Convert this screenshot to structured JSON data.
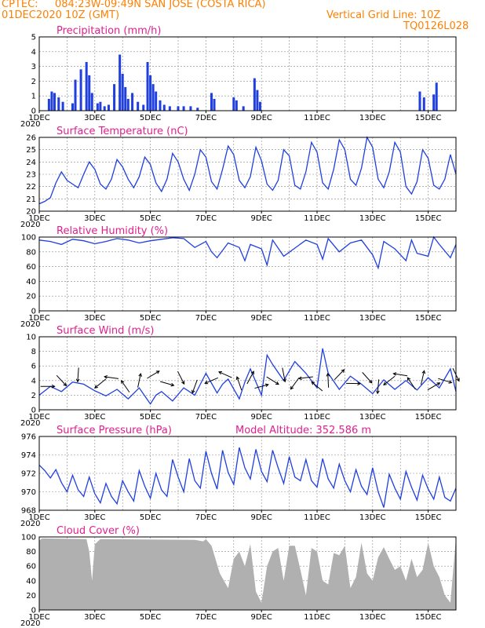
{
  "header": {
    "source": "CPTEC:",
    "location": "084:23W-09:49N  SAN JOSE (COSTA RICA)",
    "init": "01DEC2020 10Z (GMT)",
    "grid_note": "Vertical Grid Line: 10Z",
    "code": "TQ0126L028"
  },
  "x_tick_labels": [
    "1DEC",
    "3DEC",
    "5DEC",
    "7DEC",
    "9DEC",
    "11DEC",
    "13DEC",
    "15DEC"
  ],
  "year_label": "2020",
  "colors": {
    "header": "#ff8000",
    "title": "#e0208f",
    "line": "#1f3fe0",
    "bar": "#1f3fe0",
    "cloud": "#b0b0b0"
  },
  "chart_data": [
    {
      "type": "bar",
      "id": "precip",
      "title": "Precipitation (mm/h)",
      "ylim": [
        0,
        5
      ],
      "yticks": [
        0,
        1,
        2,
        3,
        4,
        5
      ],
      "x_unit": "days since 01DEC2020 10Z",
      "x_range": [
        0,
        15
      ],
      "series": [
        {
          "x": [
            0.35,
            0.45,
            0.55,
            0.7,
            0.85,
            1.2,
            1.3,
            1.5,
            1.7,
            1.8,
            1.9,
            2.1,
            2.2,
            2.35,
            2.5,
            2.7,
            2.9,
            3.0,
            3.1,
            3.2,
            3.35,
            3.55,
            3.75,
            3.9,
            4.0,
            4.1,
            4.2,
            4.35,
            4.5,
            4.7,
            5.0,
            5.2,
            5.45,
            5.7,
            6.2,
            6.3,
            7.0,
            7.1,
            7.35,
            7.75,
            7.85,
            7.95,
            13.7,
            13.85,
            14.2,
            14.3
          ],
          "values": [
            0.8,
            1.3,
            1.2,
            0.9,
            0.6,
            0.5,
            2.1,
            2.8,
            3.3,
            2.4,
            1.2,
            0.5,
            0.6,
            0.3,
            0.4,
            1.8,
            3.8,
            2.5,
            1.6,
            0.8,
            1.2,
            0.6,
            0.4,
            3.3,
            2.4,
            1.8,
            1.3,
            0.7,
            0.4,
            0.3,
            0.3,
            0.3,
            0.3,
            0.2,
            1.2,
            0.8,
            0.9,
            0.7,
            0.3,
            2.2,
            1.4,
            0.6,
            1.3,
            0.9,
            1.1,
            1.9
          ]
        }
      ]
    },
    {
      "type": "line",
      "id": "temp",
      "title": "Surface Temperature (nC)",
      "ylim": [
        20,
        26
      ],
      "yticks": [
        20,
        21,
        22,
        23,
        24,
        25,
        26
      ],
      "series": [
        {
          "x": [
            0,
            0.2,
            0.4,
            0.6,
            0.8,
            1.0,
            1.2,
            1.4,
            1.6,
            1.8,
            2.0,
            2.2,
            2.4,
            2.6,
            2.8,
            3.0,
            3.2,
            3.4,
            3.6,
            3.8,
            4.0,
            4.2,
            4.4,
            4.6,
            4.8,
            5.0,
            5.2,
            5.4,
            5.6,
            5.8,
            6.0,
            6.2,
            6.4,
            6.6,
            6.8,
            7.0,
            7.2,
            7.4,
            7.6,
            7.8,
            8.0,
            8.2,
            8.4,
            8.6,
            8.8,
            9.0,
            9.2,
            9.4,
            9.6,
            9.8,
            10.0,
            10.2,
            10.4,
            10.6,
            10.8,
            11.0,
            11.2,
            11.4,
            11.6,
            11.8,
            12.0,
            12.2,
            12.4,
            12.6,
            12.8,
            13.0,
            13.2,
            13.4,
            13.6,
            13.8,
            14.0,
            14.2,
            14.4,
            14.6,
            14.8,
            15.0
          ],
          "values": [
            20.6,
            20.8,
            21.1,
            22.3,
            23.2,
            22.5,
            22.2,
            21.9,
            23.0,
            24.0,
            23.4,
            22.2,
            21.8,
            22.6,
            24.2,
            23.6,
            22.6,
            21.9,
            22.8,
            24.4,
            23.8,
            22.3,
            21.6,
            22.6,
            24.7,
            24.0,
            22.6,
            21.7,
            23.0,
            25.0,
            24.4,
            22.4,
            21.8,
            23.4,
            25.3,
            24.6,
            22.5,
            21.9,
            22.8,
            25.2,
            24.1,
            22.2,
            21.7,
            22.5,
            25.0,
            24.5,
            22.1,
            21.8,
            23.2,
            25.6,
            24.8,
            22.3,
            21.8,
            23.4,
            25.8,
            25.0,
            22.6,
            22.1,
            23.5,
            26.0,
            25.2,
            22.6,
            21.9,
            23.2,
            25.6,
            24.8,
            22.0,
            21.4,
            22.4,
            25.0,
            24.3,
            22.1,
            21.8,
            22.6,
            24.6,
            23.0
          ]
        }
      ]
    },
    {
      "type": "line",
      "id": "rh",
      "title": "Relative Humidity (%)",
      "ylim": [
        0,
        100
      ],
      "yticks": [
        0,
        20,
        40,
        60,
        80,
        100
      ],
      "series": [
        {
          "x": [
            0,
            0.4,
            0.8,
            1.2,
            1.6,
            2.0,
            2.4,
            2.8,
            3.2,
            3.6,
            4.0,
            4.4,
            4.8,
            5.2,
            5.6,
            6.0,
            6.2,
            6.4,
            6.8,
            7.2,
            7.4,
            7.6,
            8.0,
            8.2,
            8.4,
            8.8,
            9.2,
            9.6,
            10.0,
            10.2,
            10.4,
            10.8,
            11.2,
            11.6,
            12.0,
            12.2,
            12.4,
            12.8,
            13.2,
            13.4,
            13.6,
            14.0,
            14.2,
            14.4,
            14.8,
            15.0
          ],
          "values": [
            96,
            94,
            90,
            97,
            95,
            91,
            94,
            98,
            96,
            92,
            95,
            97,
            99,
            98,
            86,
            94,
            80,
            72,
            92,
            86,
            68,
            90,
            84,
            62,
            96,
            74,
            85,
            96,
            90,
            70,
            98,
            80,
            92,
            96,
            76,
            58,
            94,
            84,
            68,
            96,
            78,
            74,
            100,
            90,
            72,
            90
          ]
        }
      ]
    },
    {
      "type": "line",
      "id": "wind",
      "title": "Surface Wind (m/s)",
      "ylim": [
        0,
        10
      ],
      "yticks": [
        0,
        2,
        4,
        6,
        8,
        10
      ],
      "series": [
        {
          "x": [
            0,
            0.4,
            0.8,
            1.2,
            1.6,
            2.0,
            2.4,
            2.8,
            3.2,
            3.6,
            4.0,
            4.2,
            4.4,
            4.8,
            5.2,
            5.6,
            6.0,
            6.4,
            6.6,
            6.8,
            7.2,
            7.4,
            7.6,
            8.0,
            8.2,
            8.4,
            8.8,
            9.2,
            9.6,
            10.0,
            10.2,
            10.4,
            10.8,
            11.2,
            11.6,
            12.0,
            12.4,
            12.8,
            13.2,
            13.6,
            14.0,
            14.4,
            14.8,
            15.0
          ],
          "values": [
            2.0,
            3.2,
            2.5,
            3.8,
            3.5,
            2.6,
            1.9,
            2.8,
            1.5,
            3.0,
            0.8,
            2.0,
            2.5,
            1.2,
            3.0,
            2.0,
            5.0,
            2.3,
            3.5,
            4.2,
            1.5,
            3.8,
            5.6,
            2.0,
            7.5,
            6.2,
            4.0,
            6.6,
            5.0,
            3.0,
            8.4,
            5.0,
            2.8,
            4.6,
            3.5,
            2.2,
            4.1,
            2.8,
            4.0,
            2.7,
            4.4,
            3.0,
            5.6,
            2.5
          ]
        }
      ],
      "arrow_x": [
        0.3,
        0.8,
        1.4,
        2.2,
        2.6,
        3.1,
        3.6,
        4.1,
        4.6,
        5.1,
        5.6,
        6.2,
        6.7,
        7.2,
        7.6,
        8.0,
        8.4,
        8.8,
        9.2,
        9.6,
        10.0,
        10.4,
        10.8,
        11.3,
        11.8,
        12.2,
        12.6,
        13.0,
        13.4,
        13.8,
        14.2,
        14.6,
        15.0
      ]
    },
    {
      "type": "line",
      "id": "pres",
      "title": "Surface Pressure (hPa)",
      "annotation": "Model Altitude: 352.586 m",
      "ylim": [
        968,
        976
      ],
      "yticks": [
        968,
        970,
        972,
        974,
        976
      ],
      "series": [
        {
          "x": [
            0,
            0.2,
            0.4,
            0.6,
            0.8,
            1.0,
            1.2,
            1.4,
            1.6,
            1.8,
            2.0,
            2.2,
            2.4,
            2.6,
            2.8,
            3.0,
            3.2,
            3.4,
            3.6,
            3.8,
            4.0,
            4.2,
            4.4,
            4.6,
            4.8,
            5.0,
            5.2,
            5.4,
            5.6,
            5.8,
            6.0,
            6.2,
            6.4,
            6.6,
            6.8,
            7.0,
            7.2,
            7.4,
            7.6,
            7.8,
            8.0,
            8.2,
            8.4,
            8.6,
            8.8,
            9.0,
            9.2,
            9.4,
            9.6,
            9.8,
            10.0,
            10.2,
            10.4,
            10.6,
            10.8,
            11.0,
            11.2,
            11.4,
            11.6,
            11.8,
            12.0,
            12.2,
            12.4,
            12.6,
            12.8,
            13.0,
            13.2,
            13.4,
            13.6,
            13.8,
            14.0,
            14.2,
            14.4,
            14.6,
            14.8,
            15.0
          ],
          "values": [
            972.9,
            972.3,
            971.5,
            972.4,
            971.0,
            970.0,
            971.8,
            970.2,
            969.5,
            971.6,
            969.8,
            968.8,
            970.9,
            969.5,
            968.7,
            971.2,
            970.0,
            969.0,
            972.3,
            970.6,
            969.3,
            972.0,
            970.2,
            969.5,
            973.5,
            971.6,
            970.0,
            973.6,
            971.2,
            970.4,
            974.4,
            972.0,
            970.3,
            974.5,
            972.1,
            970.8,
            974.8,
            972.6,
            971.4,
            974.6,
            972.2,
            971.1,
            974.5,
            972.6,
            970.9,
            973.8,
            971.6,
            971.2,
            973.5,
            971.2,
            970.5,
            973.6,
            971.4,
            970.4,
            973.0,
            971.2,
            970.0,
            972.4,
            970.6,
            969.7,
            972.6,
            970.0,
            968.3,
            971.9,
            970.4,
            969.2,
            972.2,
            970.5,
            969.1,
            971.8,
            970.3,
            969.2,
            971.6,
            969.4,
            969.0,
            970.4
          ]
        }
      ]
    },
    {
      "type": "area",
      "id": "cloud",
      "title": "Cloud Cover (%)",
      "ylim": [
        0,
        100
      ],
      "yticks": [
        0,
        20,
        40,
        60,
        80,
        100
      ],
      "series": [
        {
          "x": [
            0,
            0.1,
            1.7,
            1.8,
            1.9,
            2.0,
            2.2,
            5.6,
            5.9,
            6.0,
            6.2,
            6.5,
            6.8,
            7.0,
            7.2,
            7.4,
            7.6,
            7.8,
            8.0,
            8.2,
            8.4,
            8.6,
            8.8,
            9.0,
            9.2,
            9.4,
            9.6,
            9.8,
            10.0,
            10.2,
            10.4,
            10.6,
            10.8,
            11.0,
            11.2,
            11.4,
            11.6,
            11.8,
            12.0,
            12.2,
            12.4,
            12.6,
            12.8,
            13.0,
            13.2,
            13.4,
            13.6,
            13.8,
            14.0,
            14.2,
            14.4,
            14.6,
            14.8,
            15.0
          ],
          "values": [
            95,
            98,
            97,
            80,
            40,
            90,
            97,
            96,
            94,
            97,
            88,
            50,
            30,
            70,
            80,
            60,
            90,
            25,
            10,
            60,
            80,
            85,
            40,
            88,
            88,
            55,
            20,
            85,
            80,
            40,
            35,
            78,
            75,
            88,
            30,
            45,
            92,
            50,
            40,
            72,
            86,
            70,
            55,
            60,
            40,
            70,
            45,
            55,
            92,
            60,
            45,
            20,
            10,
            98
          ]
        }
      ]
    }
  ]
}
